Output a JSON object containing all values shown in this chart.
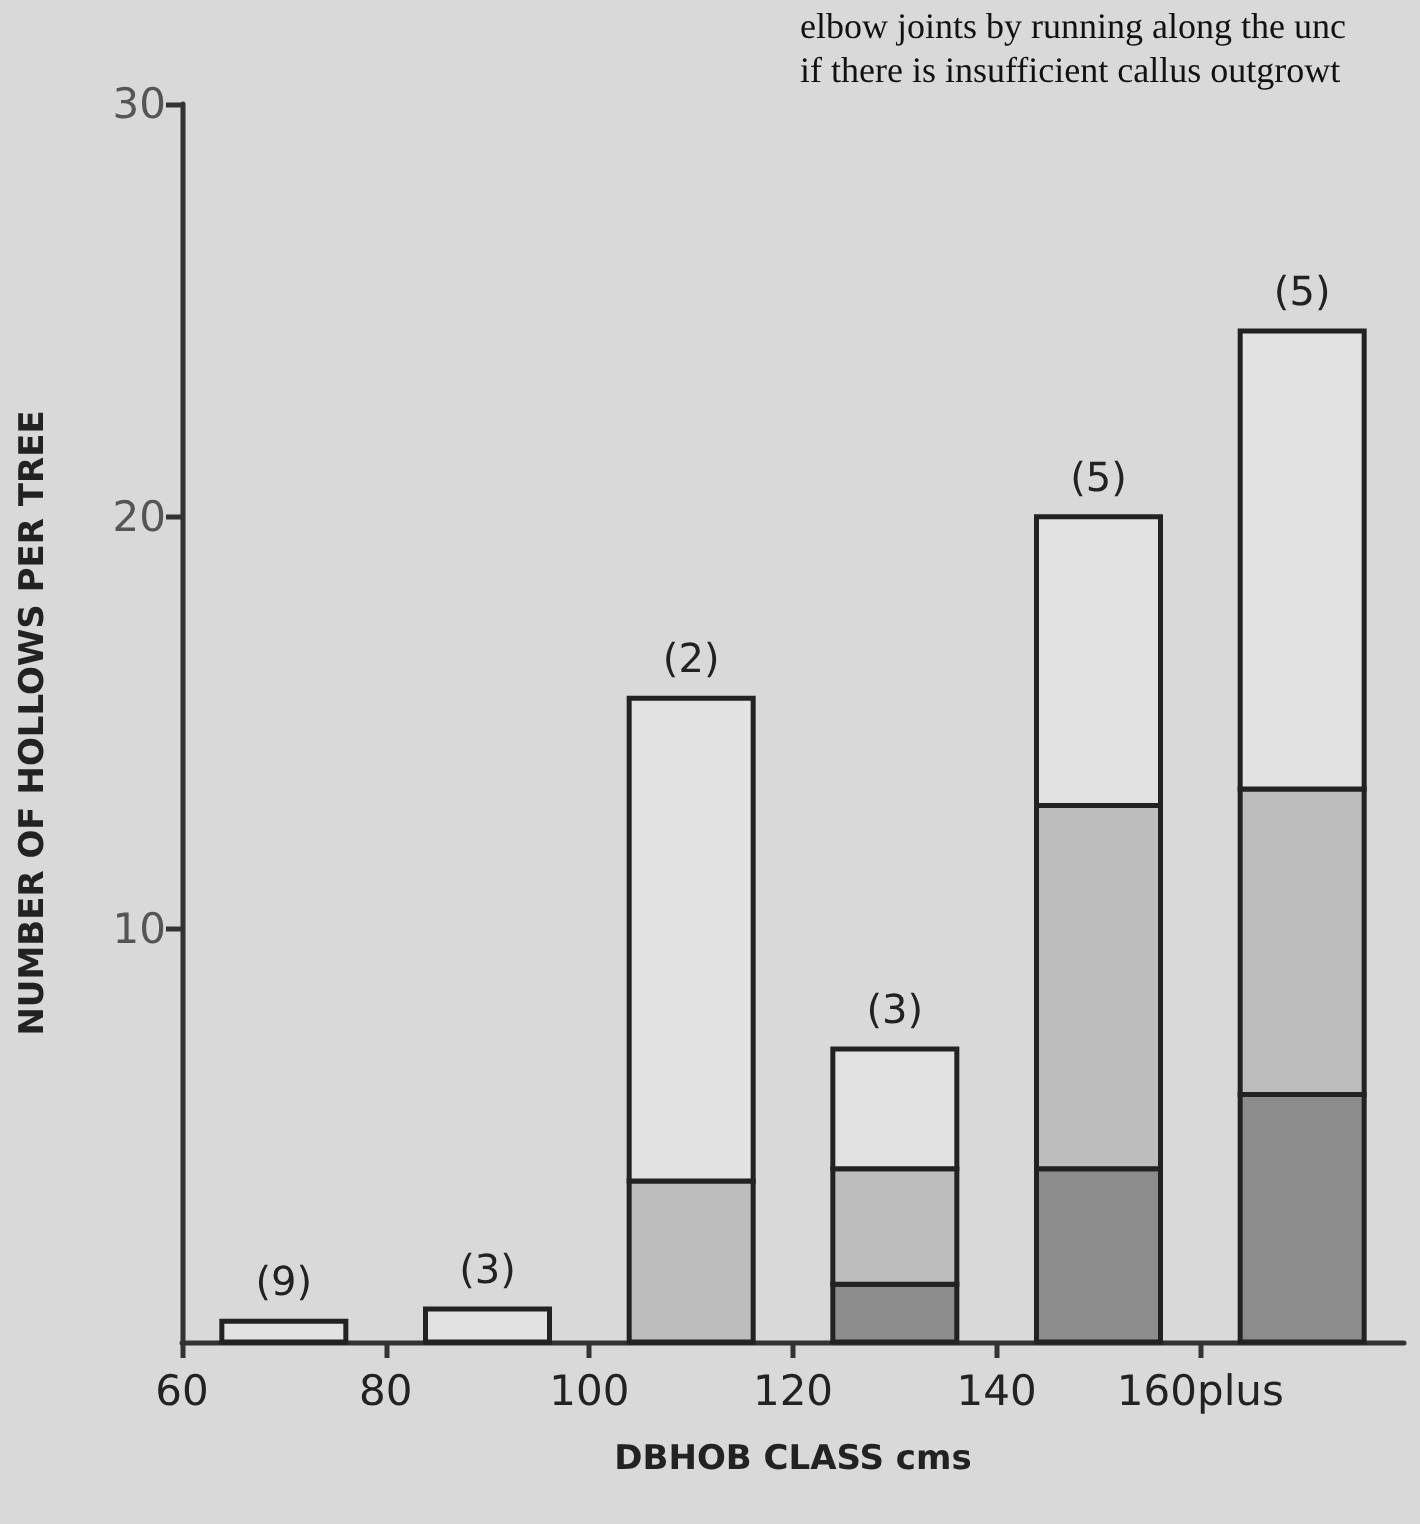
{
  "chart_data": {
    "type": "bar",
    "stacked": true,
    "xlabel": "DBHOB CLASS cms",
    "ylabel": "NUMBER OF HOLLOWS PER TREE",
    "x": [
      70,
      90,
      110,
      130,
      150,
      170
    ],
    "xlim": [
      60,
      180
    ],
    "xticks": [
      60,
      80,
      100,
      120,
      140,
      {
        "value": 160,
        "label": "160plus"
      }
    ],
    "ylim": [
      0,
      30
    ],
    "yticks": [
      10,
      20,
      30
    ],
    "series": [
      {
        "color": "#8c8c8c",
        "values": [
          0,
          0,
          0,
          1.4,
          4.2,
          6.0
        ]
      },
      {
        "color": "#bdbdbd",
        "values": [
          0,
          0,
          3.9,
          2.8,
          8.8,
          7.4
        ]
      },
      {
        "color": "#e2e2e2",
        "values": [
          0.5,
          0.8,
          11.7,
          2.9,
          7.0,
          11.1
        ]
      }
    ],
    "annotations": [
      "elbow joints by running along the unc",
      "if there is insufficient callus outgrowt",
      {
        "text": "(9)",
        "x": 70,
        "y": 0.5
      },
      {
        "text": "(3)",
        "x": 90,
        "y": 0.8
      },
      {
        "text": "(2)",
        "x": 110,
        "y": 15.6
      },
      {
        "text": "(3)",
        "x": 130,
        "y": 7.1
      },
      {
        "text": "(5)",
        "x": 150,
        "y": 20
      },
      {
        "text": "(5)",
        "x": 170,
        "y": 24.5
      }
    ],
    "grid": false
  }
}
